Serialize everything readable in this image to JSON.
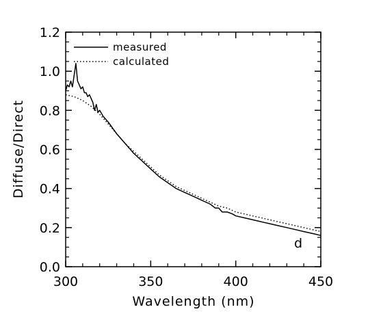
{
  "chart_data": {
    "type": "line",
    "xlabel": "Wavelength (nm)",
    "ylabel": "Diffuse/Direct",
    "xlim": [
      300,
      450
    ],
    "ylim": [
      0.0,
      1.2
    ],
    "x_ticks": [
      "300",
      "350",
      "400",
      "450"
    ],
    "y_ticks": [
      "0.0",
      "0.2",
      "0.4",
      "0.6",
      "0.8",
      "1.0",
      "1.2"
    ],
    "panel_label": "d",
    "legend_position": "top-left",
    "grid": false,
    "series": [
      {
        "name": "measured",
        "style": "solid",
        "x": [
          300,
          301,
          302,
          303,
          304,
          305,
          306,
          307,
          308,
          309,
          310,
          311,
          312,
          313,
          314,
          315,
          316,
          317,
          318,
          319,
          320,
          322,
          325,
          330,
          335,
          340,
          345,
          350,
          355,
          360,
          365,
          370,
          375,
          380,
          385,
          388,
          390,
          392,
          395,
          398,
          400,
          405,
          410,
          415,
          420,
          425,
          430,
          435,
          440,
          445,
          450
        ],
        "y": [
          0.9,
          0.93,
          0.92,
          0.95,
          0.92,
          0.98,
          1.04,
          0.95,
          0.93,
          0.91,
          0.92,
          0.89,
          0.89,
          0.87,
          0.88,
          0.86,
          0.84,
          0.8,
          0.83,
          0.79,
          0.8,
          0.77,
          0.74,
          0.68,
          0.63,
          0.58,
          0.54,
          0.5,
          0.46,
          0.43,
          0.4,
          0.38,
          0.36,
          0.34,
          0.32,
          0.3,
          0.3,
          0.28,
          0.28,
          0.27,
          0.26,
          0.25,
          0.24,
          0.23,
          0.22,
          0.21,
          0.2,
          0.19,
          0.18,
          0.17,
          0.16
        ]
      },
      {
        "name": "calculated",
        "style": "dotted",
        "x": [
          300,
          305,
          310,
          315,
          320,
          325,
          330,
          335,
          340,
          345,
          350,
          355,
          360,
          365,
          370,
          375,
          380,
          385,
          390,
          395,
          400,
          405,
          410,
          415,
          420,
          425,
          430,
          435,
          440,
          445,
          450
        ],
        "y": [
          0.88,
          0.87,
          0.85,
          0.82,
          0.78,
          0.73,
          0.68,
          0.63,
          0.59,
          0.55,
          0.51,
          0.47,
          0.44,
          0.41,
          0.39,
          0.37,
          0.35,
          0.33,
          0.31,
          0.3,
          0.28,
          0.27,
          0.26,
          0.25,
          0.24,
          0.23,
          0.22,
          0.21,
          0.2,
          0.19,
          0.18
        ]
      }
    ]
  }
}
